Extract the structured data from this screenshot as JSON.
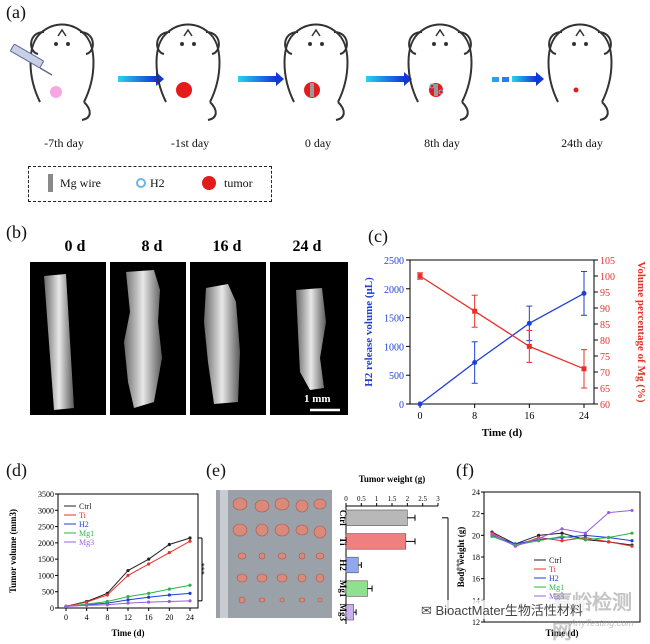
{
  "panels": {
    "a": "(a)",
    "b": "(b)",
    "c": "(c)",
    "d": "(d)",
    "e": "(e)",
    "f": "(f)"
  },
  "timeline": {
    "days": [
      "-7th day",
      "-1st day",
      "0 day",
      "8th day",
      "24th day"
    ],
    "legend": {
      "mg_wire": "Mg wire",
      "h2": "H2",
      "tumor": "tumor"
    }
  },
  "scans": {
    "titles": [
      "0 d",
      "8 d",
      "16 d",
      "24 d"
    ],
    "scale": "1 mm"
  },
  "watermark": {
    "logo_text": "BioactMater生物活性材料",
    "site_cn": "嘉峪检测网",
    "site_en": "AnyTesting.com"
  },
  "colors": {
    "blue": "#1f3fd6",
    "red": "#e8302a",
    "black": "#222222",
    "green": "#2cb34a",
    "purple": "#9a5fe0",
    "tumor_red": "#e41b1b",
    "pink": "#f7a8e4"
  },
  "chart_data": [
    {
      "id": "c",
      "type": "line",
      "xlabel": "Time (d)",
      "ylabel": "H2 release volume (μL)",
      "ylabel_right": "Volume percentage of Mg (%)",
      "x": [
        0,
        8,
        16,
        24
      ],
      "xticks": [
        "0",
        "8",
        "16",
        "24"
      ],
      "ylim": [
        0,
        2500
      ],
      "yticks": [
        "0",
        "500",
        "1000",
        "1500",
        "2000",
        "2500"
      ],
      "ylim_right": [
        60,
        105
      ],
      "yticks_right": [
        "60",
        "65",
        "70",
        "75",
        "80",
        "85",
        "90",
        "95",
        "100",
        "105"
      ],
      "series": [
        {
          "axis": "left",
          "color": "blue",
          "values": [
            0,
            720,
            1400,
            1920
          ],
          "err": [
            0,
            360,
            300,
            380
          ]
        },
        {
          "axis": "right",
          "color": "red",
          "values": [
            100,
            89,
            78,
            71
          ],
          "err": [
            1,
            5,
            5,
            6
          ]
        }
      ]
    },
    {
      "id": "d",
      "type": "line",
      "xlabel": "Time (d)",
      "ylabel": "Tumor volume (mm3)",
      "x": [
        0,
        4,
        8,
        12,
        16,
        20,
        24
      ],
      "xticks": [
        "0",
        "4",
        "8",
        "12",
        "16",
        "20",
        "24"
      ],
      "ylim": [
        0,
        3500
      ],
      "yticks": [
        "0",
        "500",
        "1000",
        "1500",
        "2000",
        "2500",
        "3000",
        "3500"
      ],
      "significance": "***",
      "series": [
        {
          "name": "Ctrl",
          "color": "black",
          "values": [
            50,
            200,
            450,
            1150,
            1500,
            1950,
            2150
          ]
        },
        {
          "name": "Ti",
          "color": "red",
          "values": [
            50,
            180,
            400,
            1000,
            1350,
            1700,
            2050
          ]
        },
        {
          "name": "H2",
          "color": "blue",
          "values": [
            50,
            100,
            150,
            250,
            330,
            400,
            450
          ]
        },
        {
          "name": "Mg1",
          "color": "green",
          "values": [
            50,
            120,
            200,
            350,
            450,
            580,
            700
          ]
        },
        {
          "name": "Mg3",
          "color": "purple",
          "values": [
            50,
            80,
            100,
            150,
            180,
            200,
            220
          ]
        }
      ]
    },
    {
      "id": "e",
      "type": "bar",
      "orientation": "horizontal",
      "title": "Tumor weight (g)",
      "categories": [
        "Ctrl",
        "Ti",
        "H2",
        "Mg1",
        "Mg3"
      ],
      "values": [
        2.0,
        1.95,
        0.4,
        0.7,
        0.25
      ],
      "err": [
        0.25,
        0.3,
        0.1,
        0.15,
        0.08
      ],
      "colors": [
        "#b8b8b8",
        "#f08080",
        "#8fa8f0",
        "#8fe08f",
        "#c9b0f0"
      ],
      "xlim": [
        0,
        3
      ],
      "xticks": [
        "0",
        "0.5",
        "1",
        "1.5",
        "2",
        "2.5",
        "3"
      ],
      "significance": "***"
    },
    {
      "id": "f",
      "type": "line",
      "xlabel": "Time (d)",
      "ylabel": "Body weight (g)",
      "x": [
        0,
        4,
        8,
        12,
        16,
        20,
        24
      ],
      "ylim": [
        12,
        24
      ],
      "yticks": [
        "12",
        "14",
        "16",
        "18",
        "20",
        "22",
        "24"
      ],
      "series": [
        {
          "name": "Ctrl",
          "color": "black",
          "values": [
            20.3,
            19.2,
            20.0,
            20.2,
            19.6,
            19.4,
            19.1
          ]
        },
        {
          "name": "Ti",
          "color": "red",
          "values": [
            20.2,
            19.0,
            19.8,
            19.5,
            19.8,
            19.4,
            19.0
          ]
        },
        {
          "name": "H2",
          "color": "blue",
          "values": [
            20.0,
            19.2,
            19.6,
            19.8,
            20.0,
            19.8,
            19.5
          ]
        },
        {
          "name": "Mg1",
          "color": "green",
          "values": [
            19.9,
            19.1,
            19.5,
            19.9,
            19.6,
            19.8,
            20.2
          ]
        },
        {
          "name": "Mg3",
          "color": "purple",
          "values": [
            20.1,
            19.0,
            19.7,
            20.6,
            20.2,
            22.1,
            22.3
          ]
        }
      ]
    }
  ]
}
